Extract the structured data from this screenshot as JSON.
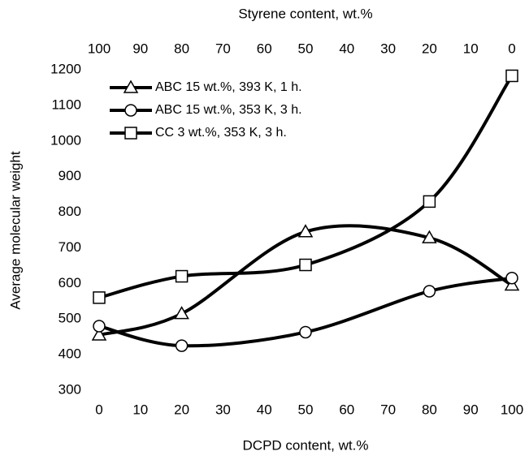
{
  "chart_data": {
    "type": "line",
    "x_label": "DCPD content, wt.%",
    "x2_label": "Styrene content, wt.%",
    "y_label": "Average molecular weight",
    "x": [
      0,
      20,
      50,
      80,
      100
    ],
    "xlim": [
      0,
      100
    ],
    "xticks": [
      0,
      10,
      20,
      30,
      40,
      50,
      60,
      70,
      80,
      90,
      100
    ],
    "x2lim": [
      100,
      0
    ],
    "x2ticks": [
      100,
      90,
      80,
      70,
      60,
      50,
      40,
      30,
      20,
      10,
      0
    ],
    "ylim": [
      300,
      1200
    ],
    "yticks": [
      300,
      400,
      500,
      600,
      700,
      800,
      900,
      1000,
      1100,
      1200
    ],
    "legend": "upper left",
    "series": [
      {
        "name": "ABC 15 wt.%, 393 K, 1 h.",
        "color": "#000000",
        "marker": "triangle",
        "values": [
          455,
          515,
          745,
          728,
          595
        ]
      },
      {
        "name": "ABC 15 wt.%, 353 K, 3 h.",
        "color": "#000000",
        "marker": "circle",
        "values": [
          480,
          425,
          463,
          578,
          615
        ]
      },
      {
        "name": "CC 3 wt.%, 353 K, 3 h.",
        "color": "#000000",
        "marker": "square",
        "values": [
          560,
          620,
          652,
          830,
          1183
        ]
      }
    ]
  }
}
